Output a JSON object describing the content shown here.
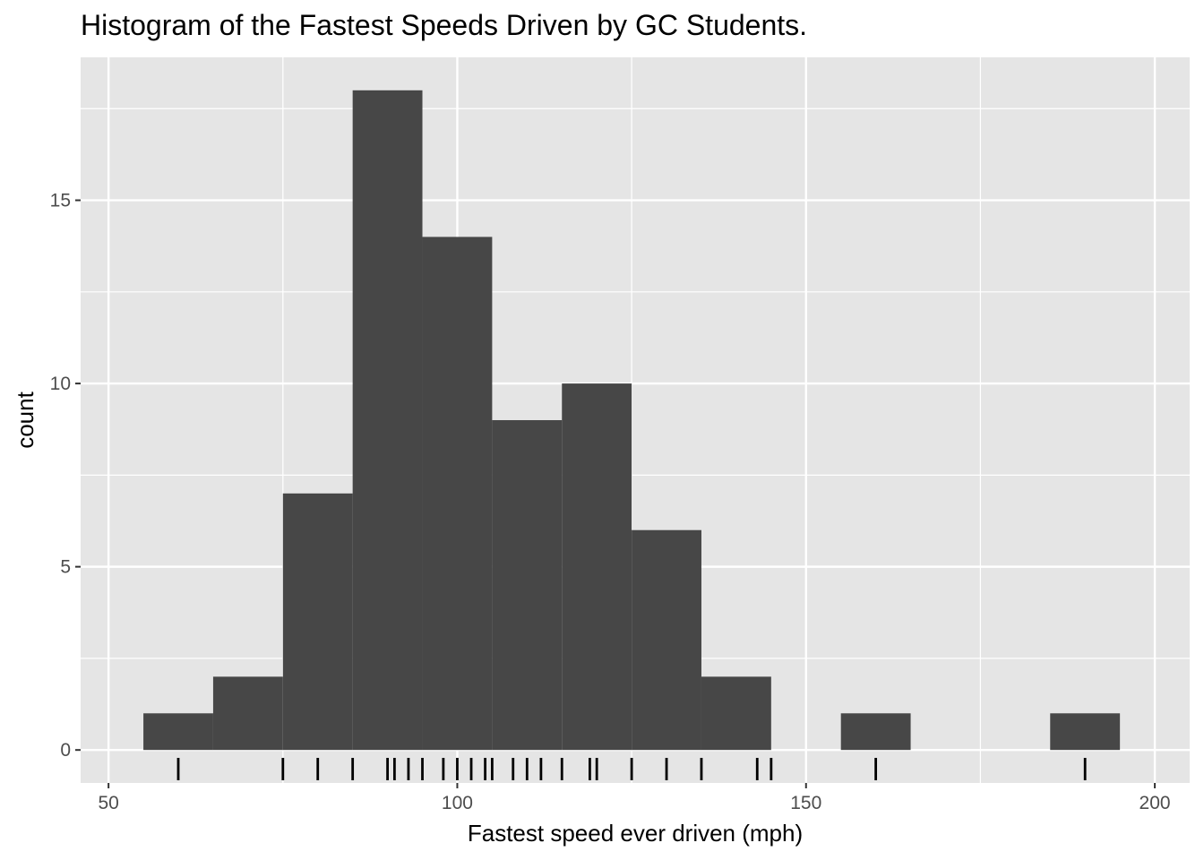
{
  "chart_data": {
    "type": "bar",
    "title": "Histogram of the Fastest Speeds Driven by GC Students.",
    "xlabel": "Fastest speed ever driven (mph)",
    "ylabel": "count",
    "xlim": [
      46,
      205
    ],
    "ylim": [
      -0.9,
      18.9
    ],
    "x_ticks": [
      50,
      100,
      150,
      200
    ],
    "y_ticks": [
      0,
      5,
      10,
      15
    ],
    "bin_width": 10,
    "bins": [
      {
        "start": 55,
        "end": 65,
        "count": 1
      },
      {
        "start": 65,
        "end": 75,
        "count": 2
      },
      {
        "start": 75,
        "end": 85,
        "count": 7
      },
      {
        "start": 85,
        "end": 95,
        "count": 18
      },
      {
        "start": 95,
        "end": 105,
        "count": 14
      },
      {
        "start": 105,
        "end": 115,
        "count": 9
      },
      {
        "start": 115,
        "end": 125,
        "count": 10
      },
      {
        "start": 125,
        "end": 135,
        "count": 6
      },
      {
        "start": 135,
        "end": 145,
        "count": 2
      },
      {
        "start": 145,
        "end": 155,
        "count": 0
      },
      {
        "start": 155,
        "end": 165,
        "count": 1
      },
      {
        "start": 165,
        "end": 175,
        "count": 0
      },
      {
        "start": 175,
        "end": 185,
        "count": 0
      },
      {
        "start": 185,
        "end": 195,
        "count": 1
      }
    ],
    "rug": [
      60,
      75,
      80,
      85,
      90,
      91,
      93,
      95,
      98,
      100,
      102,
      104,
      105,
      108,
      110,
      112,
      115,
      119,
      120,
      125,
      130,
      135,
      143,
      145,
      160,
      190
    ],
    "grid": true,
    "colors": {
      "panel_background": "#e5e5e5",
      "grid_line": "#ffffff",
      "bar_fill": "#474747",
      "rug": "#000000",
      "tick_label": "#4d4d4d",
      "axis_tick": "#333333"
    }
  }
}
